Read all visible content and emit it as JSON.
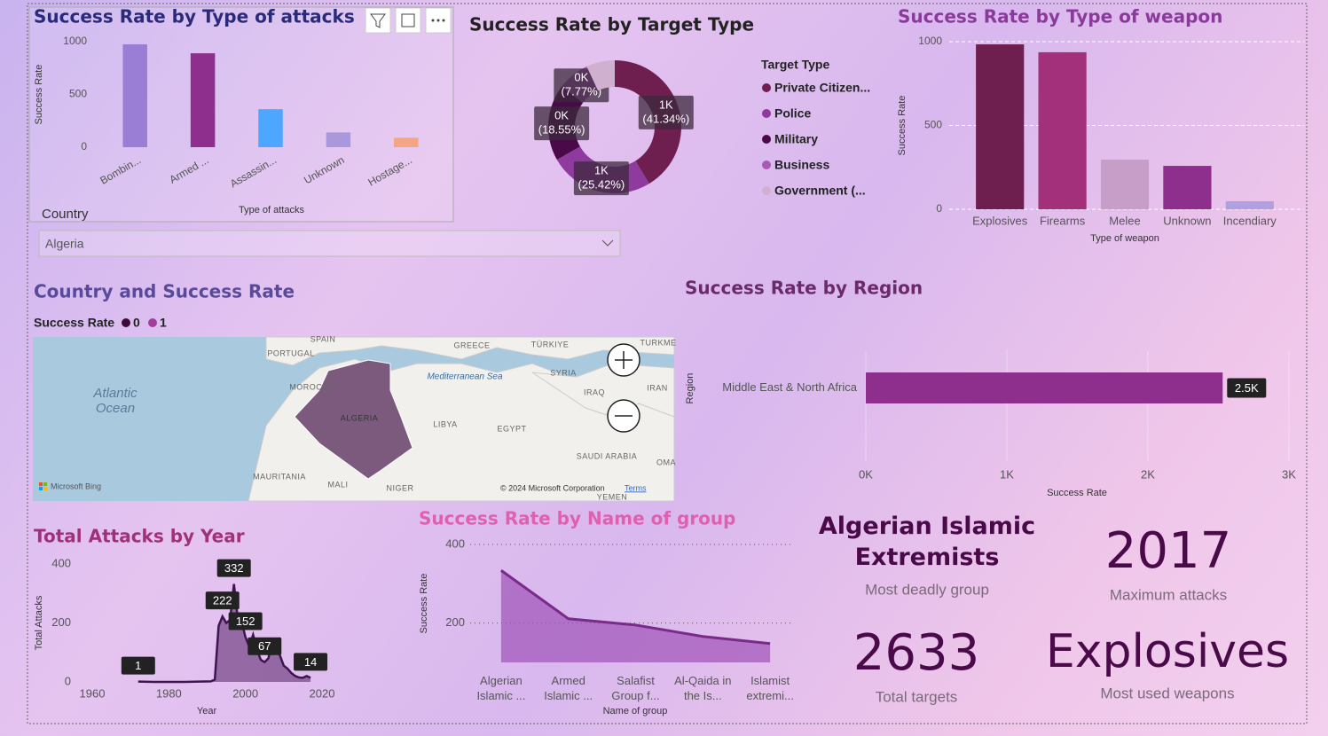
{
  "chart_data": [
    {
      "type": "bar",
      "title": "Success Rate by Type of attacks",
      "x_label": "Type of attacks",
      "y_label": "Success Rate",
      "categories": [
        "Bombin...",
        "Armed ...",
        "Assassin...",
        "Unknown",
        "Hostage..."
      ],
      "values": [
        975,
        890,
        360,
        140,
        90
      ],
      "colors": [
        "#9a7ed6",
        "#8e2f8e",
        "#4da6ff",
        "#a999dc",
        "#f4a582"
      ],
      "ylim": [
        0,
        1000
      ],
      "yticks": [
        0,
        500,
        1000
      ],
      "grid": false
    },
    {
      "type": "donut",
      "title": "Success Rate by Target Type",
      "legend_title": "Target Type",
      "categories": [
        "Private Citizen...",
        "Police",
        "Military",
        "Business",
        "Government (..."
      ],
      "values": [
        1088.48,
        669.31,
        488.42,
        204.58,
        182.2
      ],
      "value_labels": [
        "1K",
        "1K",
        "0K",
        "0K",
        null
      ],
      "percent_labels": [
        "(41.34%)",
        "(25.42%)",
        "(18.55%)",
        "(7.77%)",
        null
      ],
      "colors": [
        "#6e1f4f",
        "#8e3a9e",
        "#4a0a4a",
        "#a85ab5",
        "#cfb0cf"
      ]
    },
    {
      "type": "bar",
      "title": "Success Rate by Type of weapon",
      "x_label": "Type of weapon",
      "y_label": "Success Rate",
      "categories": [
        "Explosives",
        "Firearms",
        "Melee",
        "Unknown",
        "Incendiary"
      ],
      "values": [
        984,
        937,
        296,
        259,
        48
      ],
      "colors": [
        "#6e1f4f",
        "#a3307a",
        "#c79ec7",
        "#8e2f8e",
        "#b0a0e0"
      ],
      "ylim": [
        0,
        1000
      ],
      "yticks": [
        0,
        500,
        1000
      ],
      "grid": true
    },
    {
      "type": "bar",
      "orientation": "horizontal",
      "title": "Success Rate by Region",
      "x_label": "Success Rate",
      "y_label": "Region",
      "categories": [
        "Middle East & North Africa"
      ],
      "values": [
        2530
      ],
      "value_labels": [
        "2.5K"
      ],
      "color": "#8e2f8e",
      "xlim": [
        0,
        3000
      ],
      "xticks": [
        {
          "value": 0,
          "label": "0K"
        },
        {
          "value": 1000,
          "label": "1K"
        },
        {
          "value": 2000,
          "label": "2K"
        },
        {
          "value": 3000,
          "label": "3K"
        }
      ],
      "grid": true
    },
    {
      "type": "area",
      "title": "Total Attacks by Year",
      "x_label": "Year",
      "y_label": "Total Attacks",
      "x": [
        1972,
        1976,
        1980,
        1984,
        1988,
        1991,
        1992,
        1993,
        1994,
        1995,
        1996,
        1997,
        1998,
        1999,
        2000,
        2001,
        2002,
        2003,
        2004,
        2005,
        2006,
        2007,
        2008,
        2009,
        2010,
        2011,
        2012,
        2013,
        2014,
        2015,
        2016,
        2017
      ],
      "values": [
        1,
        0,
        0,
        0,
        1,
        2,
        8,
        190,
        222,
        200,
        210,
        332,
        215,
        205,
        152,
        120,
        160,
        110,
        75,
        67,
        80,
        140,
        135,
        90,
        55,
        45,
        30,
        20,
        15,
        14,
        20,
        14
      ],
      "value_labels": [
        "1",
        null,
        null,
        null,
        null,
        null,
        null,
        null,
        "222",
        null,
        null,
        "332",
        null,
        null,
        "152",
        null,
        null,
        null,
        null,
        "67",
        null,
        null,
        null,
        null,
        null,
        null,
        null,
        null,
        null,
        null,
        null,
        "14"
      ],
      "color": "#6b3a7a",
      "xlim": [
        1960,
        2020
      ],
      "xticks": [
        1960,
        1980,
        2000,
        2020
      ],
      "ylim": [
        0,
        400
      ],
      "yticks": [
        0,
        200,
        400
      ]
    },
    {
      "type": "area",
      "title": "Success Rate by Name of group",
      "x_label": "Name of group",
      "y_label": "Success Rate",
      "categories": [
        "Algerian Islamic ...",
        "Armed Islamic ...",
        "Salafist Group f...",
        "Al-Qaida in the Is...",
        "Islamist extremi..."
      ],
      "values": [
        334,
        211,
        195,
        166,
        148
      ],
      "color": "#a052b8",
      "ylim": [
        100,
        400
      ],
      "yticks": [
        200,
        400
      ],
      "grid": true
    }
  ],
  "slicer": {
    "label": "Country",
    "value": "Algeria"
  },
  "map": {
    "title": "Country and Success Rate",
    "legend_title": "Success Rate",
    "legend": [
      "0",
      "1"
    ],
    "legend_colors": [
      "#3a0a3a",
      "#a0409a"
    ],
    "labels": [
      "SPAIN",
      "PORTUGAL",
      "GREECE",
      "TÜRKIYE",
      "TURKME",
      "Atlantic",
      "Ocean",
      "Mediterranean Sea",
      "SYRIA",
      "MOROCCO",
      "IRAQ",
      "IRAN",
      "ALGERIA",
      "LIBYA",
      "EGYPT",
      "SAUDI ARABIA",
      "OMA",
      "MAURITANIA",
      "MALI",
      "NIGER",
      "YEMEN"
    ],
    "attribution": "© 2024 Microsoft Corporation",
    "terms": "Terms",
    "provider": "Microsoft Bing"
  },
  "cards": [
    {
      "value": "Algerian Islamic Extremists",
      "label": "Most deadly group"
    },
    {
      "value": 2017,
      "label": "Maximum attacks"
    },
    {
      "value": 2633,
      "label": "Total targets"
    },
    {
      "value": "Explosives",
      "label": "Most used weapons"
    }
  ]
}
